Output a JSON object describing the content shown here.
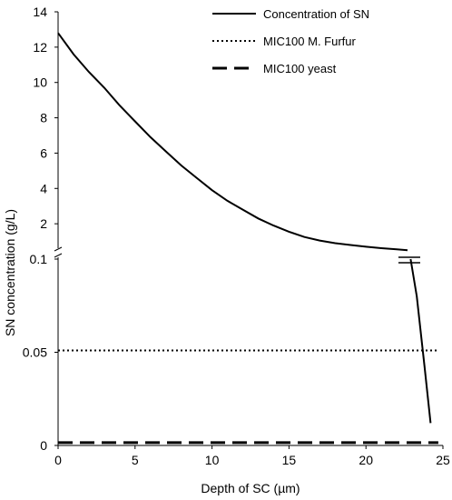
{
  "chart_data": {
    "type": "line",
    "xlabel": "Depth of SC (µm)",
    "ylabel": "SN concentration (g/L)",
    "xlim": [
      0,
      25
    ],
    "x_ticks": [
      "0",
      "5",
      "10",
      "15",
      "20",
      "25"
    ],
    "y_axis_broken": true,
    "y_ticks_lower": [
      "0",
      "0.05",
      "0.1"
    ],
    "y_ticks_upper": [
      "2",
      "4",
      "6",
      "8",
      "10",
      "12",
      "14"
    ],
    "ylim_lower": [
      0,
      0.1
    ],
    "ylim_upper": [
      0,
      14
    ],
    "legend_position": "top-right",
    "series": [
      {
        "name": "Concentration of SN",
        "line_style": "solid",
        "upper_x": [
          0,
          1,
          2,
          3,
          4,
          5,
          6,
          7,
          8,
          9,
          10,
          11,
          12,
          13,
          14,
          15,
          16,
          17,
          18,
          19,
          20,
          21,
          22,
          22.7
        ],
        "upper_y": [
          12.8,
          11.6,
          10.6,
          9.7,
          8.7,
          7.8,
          6.9,
          6.1,
          5.3,
          4.6,
          3.9,
          3.3,
          2.8,
          2.3,
          1.9,
          1.55,
          1.25,
          1.05,
          0.9,
          0.8,
          0.7,
          0.62,
          0.55,
          0.5
        ],
        "lower_x": [
          22.9,
          23.3,
          23.8,
          24.2
        ],
        "lower_y": [
          0.1,
          0.08,
          0.043,
          0.012
        ]
      },
      {
        "name": "MIC100 M. Furfur",
        "line_style": "dotted",
        "x": [
          0,
          24.7
        ],
        "y": [
          0.051,
          0.051
        ]
      },
      {
        "name": "MIC100 yeast",
        "line_style": "dashed",
        "x": [
          0,
          24.7
        ],
        "y": [
          0.0015,
          0.0015
        ]
      }
    ]
  }
}
